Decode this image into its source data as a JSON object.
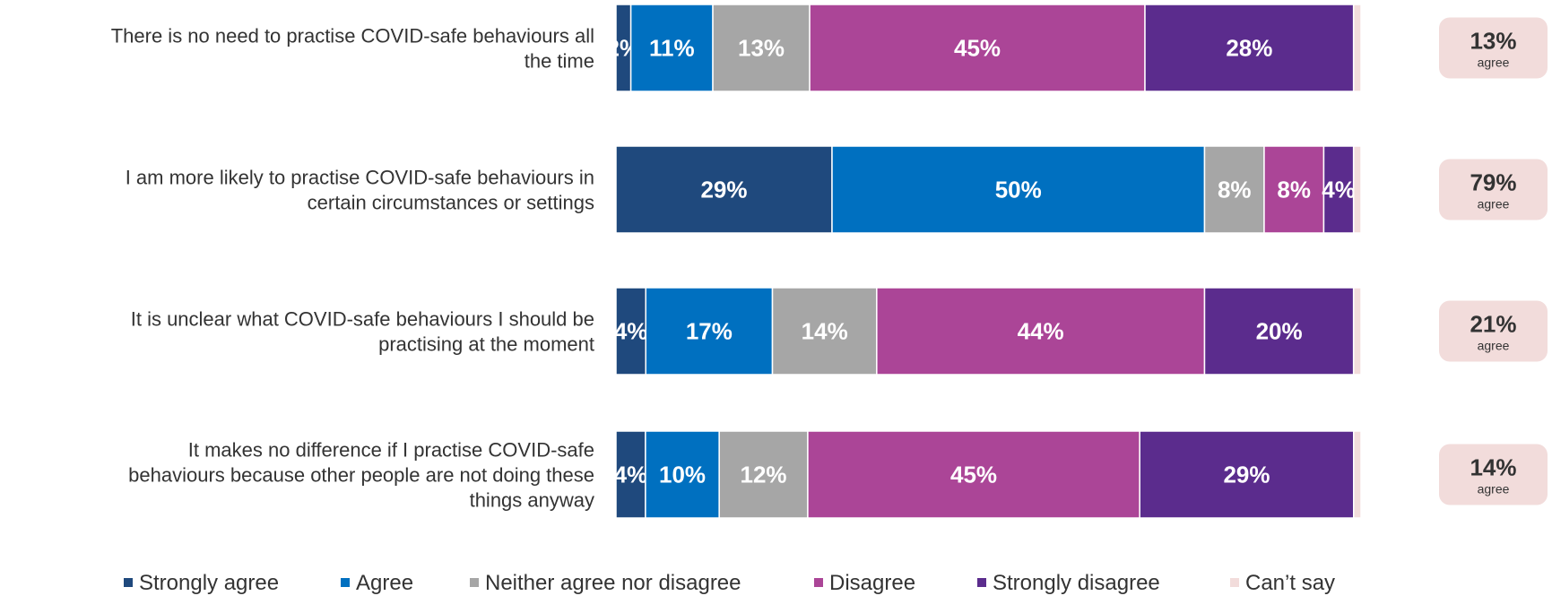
{
  "chart_data": {
    "type": "bar",
    "orientation": "horizontal",
    "stacked": true,
    "normalized_percent": true,
    "grid": false,
    "legend_position": "bottom",
    "categories": [
      "There is no need to practise COVID-safe behaviours all the time",
      "I am more likely to practise COVID-safe behaviours in certain circumstances or settings",
      "It is unclear what COVID-safe behaviours I should be practising at the moment",
      "It makes no difference if I practise COVID-safe behaviours because other people are not doing these things anyway"
    ],
    "category_lines": [
      [
        "There is no need to practise COVID-safe behaviours all",
        "the time"
      ],
      [
        "I am more likely to practise COVID-safe behaviours in",
        "certain circumstances or settings"
      ],
      [
        "It is unclear what COVID-safe behaviours I should be",
        "practising at the moment"
      ],
      [
        "It makes no difference if I practise COVID-safe",
        "behaviours because other people are not doing these",
        "things anyway"
      ]
    ],
    "series": [
      {
        "name": "Strongly agree",
        "color": "#1f497d",
        "values": [
          2,
          29,
          4,
          4
        ],
        "labels": [
          "2%",
          "29%",
          "4%",
          "4%"
        ]
      },
      {
        "name": "Agree",
        "color": "#0070c0",
        "values": [
          11,
          50,
          17,
          10
        ],
        "labels": [
          "11%",
          "50%",
          "17%",
          "10%"
        ]
      },
      {
        "name": "Neither agree nor disagree",
        "color": "#a6a6a6",
        "values": [
          13,
          8,
          14,
          12
        ],
        "labels": [
          "13%",
          "8%",
          "14%",
          "12%"
        ]
      },
      {
        "name": "Disagree",
        "color": "#ab4597",
        "values": [
          45,
          8,
          44,
          45
        ],
        "labels": [
          "45%",
          "8%",
          "44%",
          "45%"
        ]
      },
      {
        "name": "Strongly disagree",
        "color": "#5b2c8d",
        "values": [
          28,
          4,
          20,
          29
        ],
        "labels": [
          "28%",
          "4%",
          "20%",
          "29%"
        ]
      },
      {
        "name": "Can’t say",
        "color": "#f2dcdb",
        "values": [
          1,
          1,
          1,
          1
        ],
        "labels": [
          "",
          "",
          "",
          ""
        ]
      }
    ],
    "agree_summary": {
      "values": [
        "13%",
        "79%",
        "21%",
        "14%"
      ],
      "word": "agree",
      "box_color": "#f2dcdb"
    }
  }
}
